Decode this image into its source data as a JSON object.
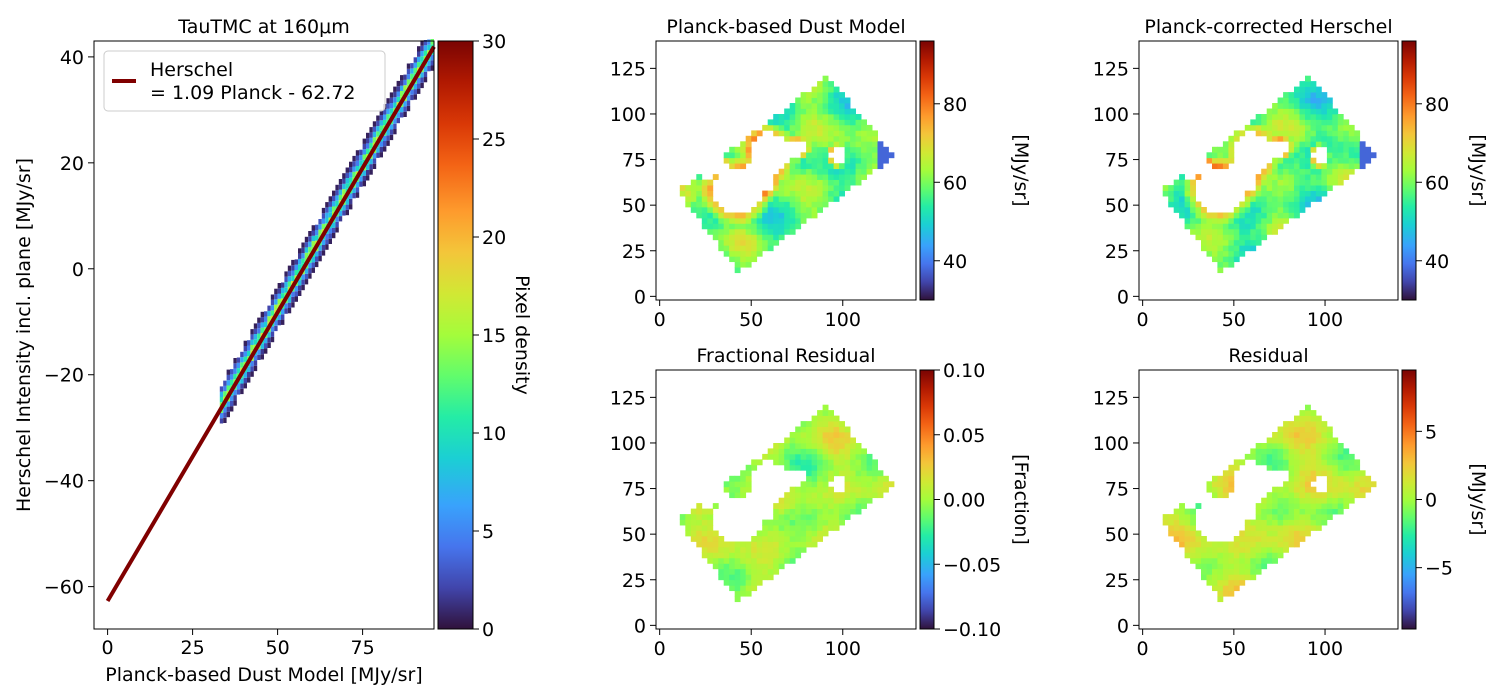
{
  "figure": {
    "main": {
      "title": "TauTMC at 160μm",
      "xlabel": "Planck-based Dust Model [MJy/sr]",
      "ylabel": "Herschel Intensity incl. plane [MJy/sr]",
      "legend": {
        "line1": "Herschel",
        "line2": "= 1.09 Planck - 62.72",
        "color": "#800000",
        "placement": "upper-left"
      },
      "colorbar": {
        "label": "Pixel density",
        "ticks": [
          "0",
          "5",
          "10",
          "15",
          "20",
          "25",
          "30"
        ]
      }
    },
    "maps": [
      {
        "title": "Planck-based Dust Model",
        "cbar_label": "[MJy/sr]",
        "cbar_ticks": [
          "40",
          "60",
          "80"
        ]
      },
      {
        "title": "Planck-corrected Herschel",
        "cbar_label": "[MJy/sr]",
        "cbar_ticks": [
          "40",
          "60",
          "80"
        ]
      },
      {
        "title": "Fractional Residual",
        "cbar_label": "[Fraction]",
        "cbar_ticks": [
          "−0.10",
          "−0.05",
          "0.00",
          "0.05",
          "0.10"
        ]
      },
      {
        "title": "Residual",
        "cbar_label": "[MJy/sr]",
        "cbar_ticks": [
          "−5",
          "0",
          "5"
        ]
      }
    ]
  },
  "chart_data": [
    {
      "type": "heatmap",
      "title": "TauTMC at 160μm",
      "xlabel": "Planck-based Dust Model [MJy/sr]",
      "ylabel": "Herschel Intensity incl. plane [MJy/sr]",
      "xlim": [
        -4,
        96
      ],
      "ylim": [
        -68,
        43
      ],
      "xticks": [
        0,
        25,
        50,
        75
      ],
      "yticks": [
        -60,
        -40,
        -20,
        0,
        20,
        40
      ],
      "colormap": "turbo",
      "colorbar": {
        "label": "Pixel density",
        "min": 0,
        "max": 30,
        "ticks": [
          0,
          5,
          10,
          15,
          20,
          25,
          30
        ]
      },
      "density_ridge": {
        "slope": 1.09,
        "intercept": -62.72,
        "x_range": [
          33,
          96
        ],
        "peak_density": 18
      },
      "fit_line": {
        "name": "Herschel\n= 1.09 Planck - 62.72",
        "slope": 1.09,
        "intercept": -62.72,
        "x_range": [
          0,
          96
        ],
        "color": "#800000"
      },
      "legend": "upper-left",
      "grid": false
    },
    {
      "type": "heatmap",
      "title": "Planck-based Dust Model",
      "xlim": [
        -2,
        140
      ],
      "ylim": [
        -2,
        140
      ],
      "xticks": [
        0,
        50,
        100
      ],
      "yticks": [
        0,
        25,
        50,
        75,
        100,
        125
      ],
      "colormap": "turbo",
      "colorbar": {
        "label": "[MJy/sr]",
        "min": 30,
        "max": 96,
        "ticks": [
          40,
          60,
          80
        ]
      },
      "footprint_corners": [
        [
          10,
          58
        ],
        [
          92,
          121
        ],
        [
          128,
          77
        ],
        [
          43,
          13
        ]
      ],
      "mean_value": 58
    },
    {
      "type": "heatmap",
      "title": "Planck-corrected Herschel",
      "xlim": [
        -2,
        140
      ],
      "ylim": [
        -2,
        140
      ],
      "xticks": [
        0,
        50,
        100
      ],
      "yticks": [
        0,
        25,
        50,
        75,
        100,
        125
      ],
      "colormap": "turbo",
      "colorbar": {
        "label": "[MJy/sr]",
        "min": 30,
        "max": 96,
        "ticks": [
          40,
          60,
          80
        ]
      },
      "footprint_corners": [
        [
          10,
          58
        ],
        [
          92,
          121
        ],
        [
          128,
          77
        ],
        [
          43,
          13
        ]
      ],
      "mean_value": 57
    },
    {
      "type": "heatmap",
      "title": "Fractional Residual",
      "xlim": [
        -2,
        140
      ],
      "ylim": [
        -2,
        140
      ],
      "xticks": [
        0,
        50,
        100
      ],
      "yticks": [
        0,
        25,
        50,
        75,
        100,
        125
      ],
      "colormap": "turbo",
      "colorbar": {
        "label": "[Fraction]",
        "min": -0.1,
        "max": 0.1,
        "ticks": [
          -0.1,
          -0.05,
          0.0,
          0.05,
          0.1
        ]
      },
      "footprint_corners": [
        [
          10,
          58
        ],
        [
          92,
          121
        ],
        [
          128,
          77
        ],
        [
          43,
          13
        ]
      ],
      "mean_value": 0.0
    },
    {
      "type": "heatmap",
      "title": "Residual",
      "xlim": [
        -2,
        140
      ],
      "ylim": [
        -2,
        140
      ],
      "xticks": [
        0,
        50,
        100
      ],
      "yticks": [
        0,
        25,
        50,
        75,
        100,
        125
      ],
      "colormap": "turbo",
      "colorbar": {
        "label": "[MJy/sr]",
        "min": -9.5,
        "max": 9.5,
        "ticks": [
          -5,
          0,
          5
        ]
      },
      "footprint_corners": [
        [
          10,
          58
        ],
        [
          92,
          121
        ],
        [
          128,
          77
        ],
        [
          43,
          13
        ]
      ],
      "mean_value": 0.5
    }
  ]
}
